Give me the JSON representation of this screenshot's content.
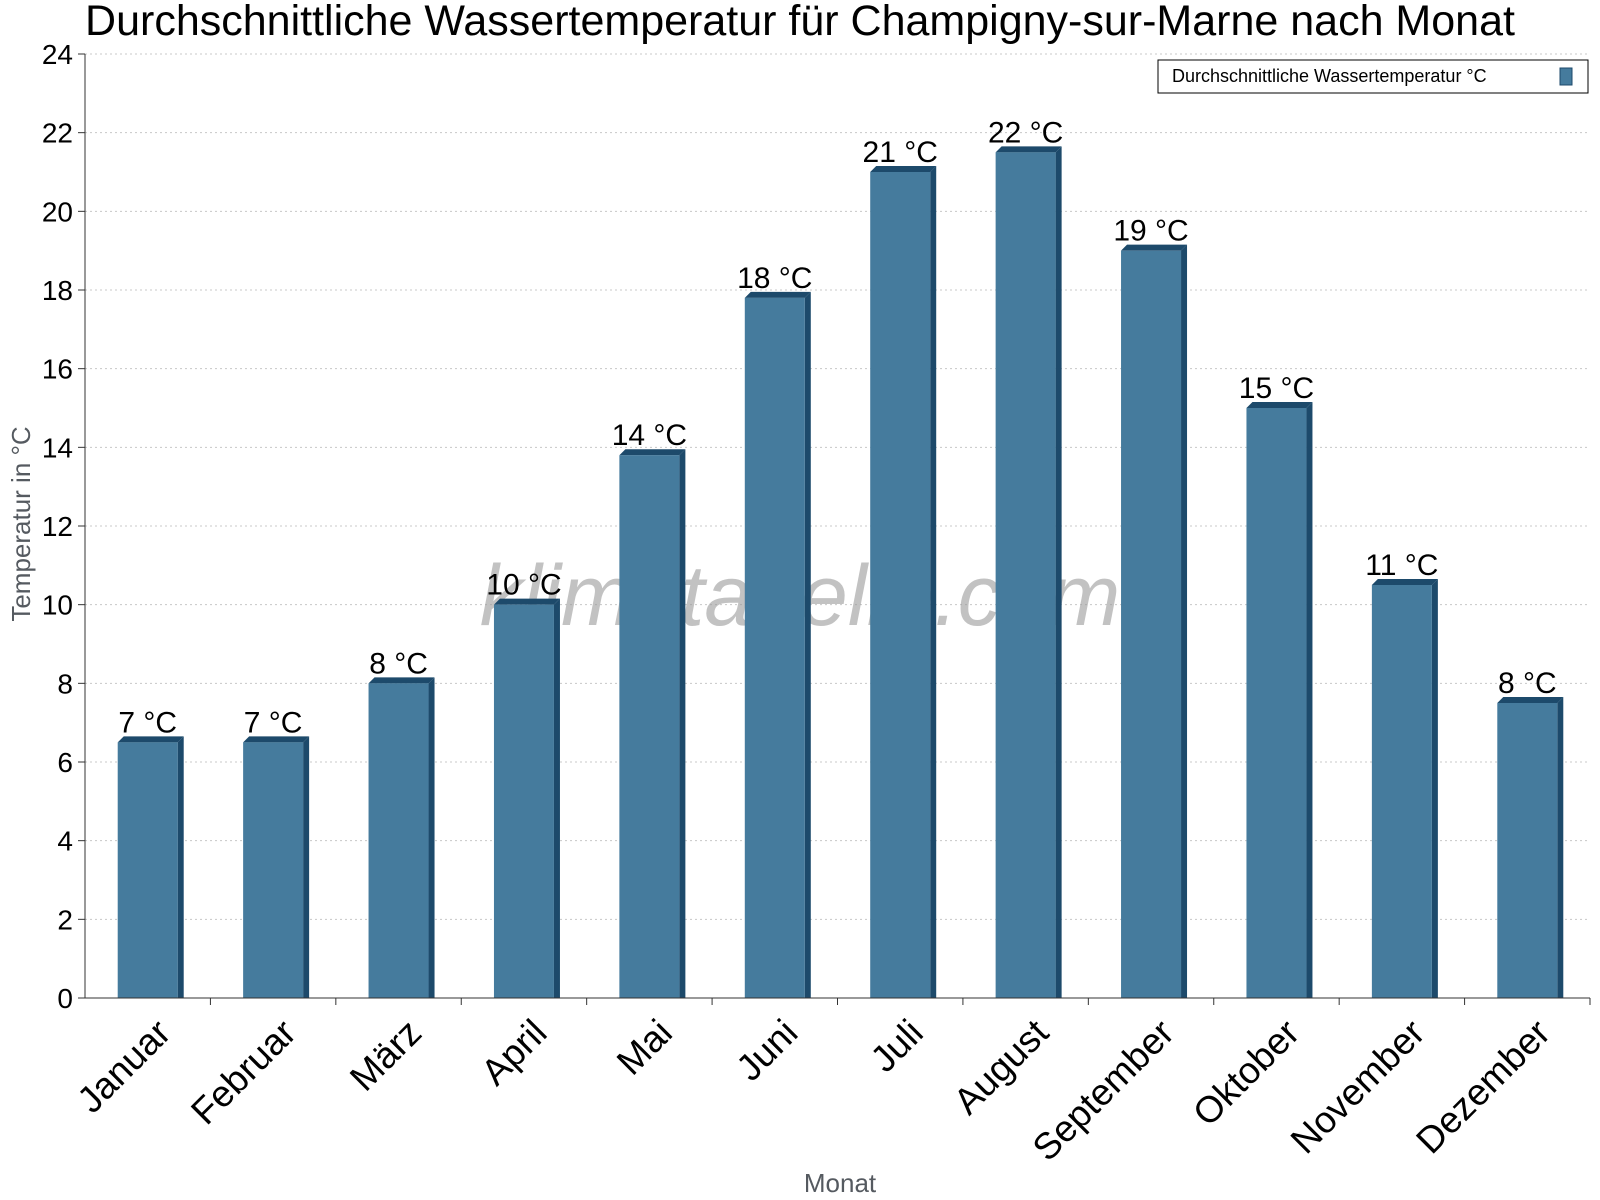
{
  "chart_data": {
    "type": "bar",
    "title": "Durchschnittliche Wassertemperatur für Champigny-sur-Marne nach Monat",
    "xlabel": "Monat",
    "ylabel": "Temperatur in °C",
    "ylim": [
      0,
      24
    ],
    "yticks": [
      0,
      2,
      4,
      6,
      8,
      10,
      12,
      14,
      16,
      18,
      20,
      22,
      24
    ],
    "categories": [
      "Januar",
      "Februar",
      "März",
      "April",
      "Mai",
      "Juni",
      "Juli",
      "August",
      "September",
      "Oktober",
      "November",
      "Dezember"
    ],
    "series": [
      {
        "name": "Durchschnittliche Wassertemperatur °C",
        "values": [
          6.5,
          6.5,
          8.0,
          10.0,
          13.8,
          17.8,
          21.0,
          21.5,
          19.0,
          15.0,
          10.5,
          7.5
        ],
        "labels": [
          "7 °C",
          "7 °C",
          "8 °C",
          "10 °C",
          "14 °C",
          "18 °C",
          "21 °C",
          "22 °C",
          "19 °C",
          "15 °C",
          "11 °C",
          "8 °C"
        ],
        "color": "#457b9d",
        "side_color": "#1d4a6b"
      }
    ],
    "grid": true,
    "legend_position": "top-right",
    "watermark": "klimatabelle.com"
  }
}
